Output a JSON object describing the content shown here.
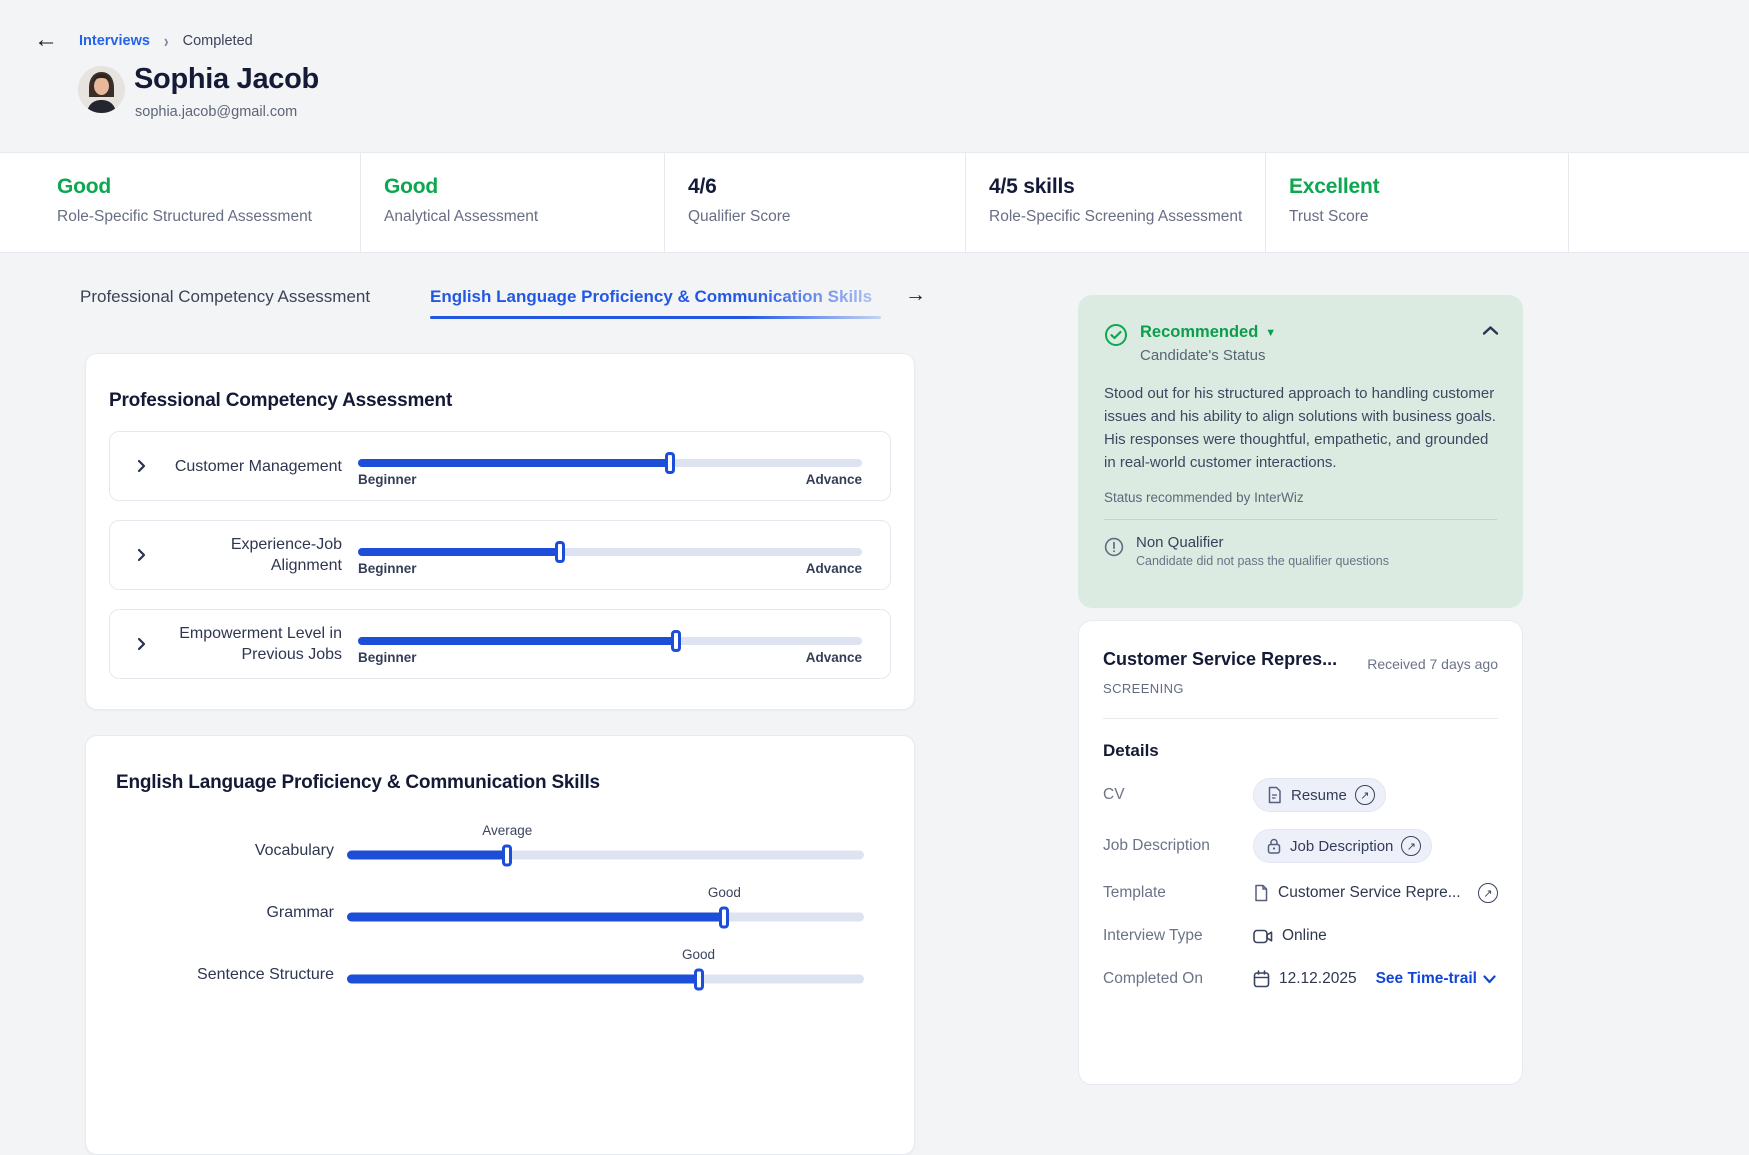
{
  "colors": {
    "accent_blue": "#1D4ED8",
    "positive_green": "#0CA750",
    "status_card_bg": "#DCEBE2",
    "link_blue": "#2563EB"
  },
  "breadcrumb": {
    "back_icon": "arrow-left",
    "link": "Interviews",
    "current": "Completed"
  },
  "candidate": {
    "name": "Sophia Jacob",
    "email": "sophia.jacob@gmail.com"
  },
  "stats": [
    {
      "value": "Good",
      "label": "Role-Specific Structured Assessment"
    },
    {
      "value": "Good",
      "label": "Analytical Assessment"
    },
    {
      "value": "4/6",
      "label": "Qualifier Score"
    },
    {
      "value": "4/5 skills",
      "label": "Role-Specific Screening Assessment"
    },
    {
      "value": "Excellent",
      "label": "Trust Score"
    }
  ],
  "tabs": {
    "inactive": "Professional Competency Assessment",
    "active": "English Language Proficiency & Communication Skills",
    "arrow_icon": "arrow-right"
  },
  "competency_card": {
    "title": "Professional Competency Assessment",
    "rows": [
      {
        "label": "Customer Management",
        "percent": 62,
        "min": "Beginner",
        "max": "Advance"
      },
      {
        "label": "Experience-Job Alignment",
        "percent": 40,
        "min": "Beginner",
        "max": "Advance"
      },
      {
        "label": "Empowerment Level in Previous Jobs",
        "percent": 63,
        "min": "Beginner",
        "max": "Advance"
      }
    ]
  },
  "language_card": {
    "title": "English Language Proficiency & Communication Skills",
    "rows": [
      {
        "label": "Vocabulary",
        "value_label": "Average",
        "percent": 31
      },
      {
        "label": "Grammar",
        "value_label": "Good",
        "percent": 73
      },
      {
        "label": "Sentence Structure",
        "value_label": "Good",
        "percent": 68
      }
    ]
  },
  "status_card": {
    "status": "Recommended",
    "subtitle": "Candidate's Status",
    "status_icon": "check-circle-icon",
    "description": "Stood out for his structured approach to handling customer issues and his ability to align solutions with business goals. His responses were thoughtful, empathetic, and grounded in real-world customer interactions.",
    "recommended_by": "Status recommended by InterWiz",
    "qualifier": {
      "icon": "alert-circle-icon",
      "title": "Non Qualifier",
      "subtitle": "Candidate did not pass the qualifier questions"
    }
  },
  "job_card": {
    "title": "Customer Service Repres...",
    "received": "Received 7 days ago",
    "stage": "SCREENING",
    "details_title": "Details",
    "details": [
      {
        "label": "CV",
        "value": "Resume",
        "icon": "document-icon",
        "style": "chip",
        "external": true
      },
      {
        "label": "Job Description",
        "value": "Job Description",
        "icon": "lock-icon",
        "style": "chip",
        "external": true
      },
      {
        "label": "Template",
        "value": "Customer Service Repre...",
        "icon": "file-icon",
        "style": "plain",
        "external": true
      },
      {
        "label": "Interview Type",
        "value": "Online",
        "icon": "video-icon",
        "style": "plain",
        "external": false
      },
      {
        "label": "Completed On",
        "value": "12.12.2025",
        "icon": "calendar-icon",
        "style": "plain",
        "external": false,
        "action": "See Time-trail"
      }
    ]
  }
}
